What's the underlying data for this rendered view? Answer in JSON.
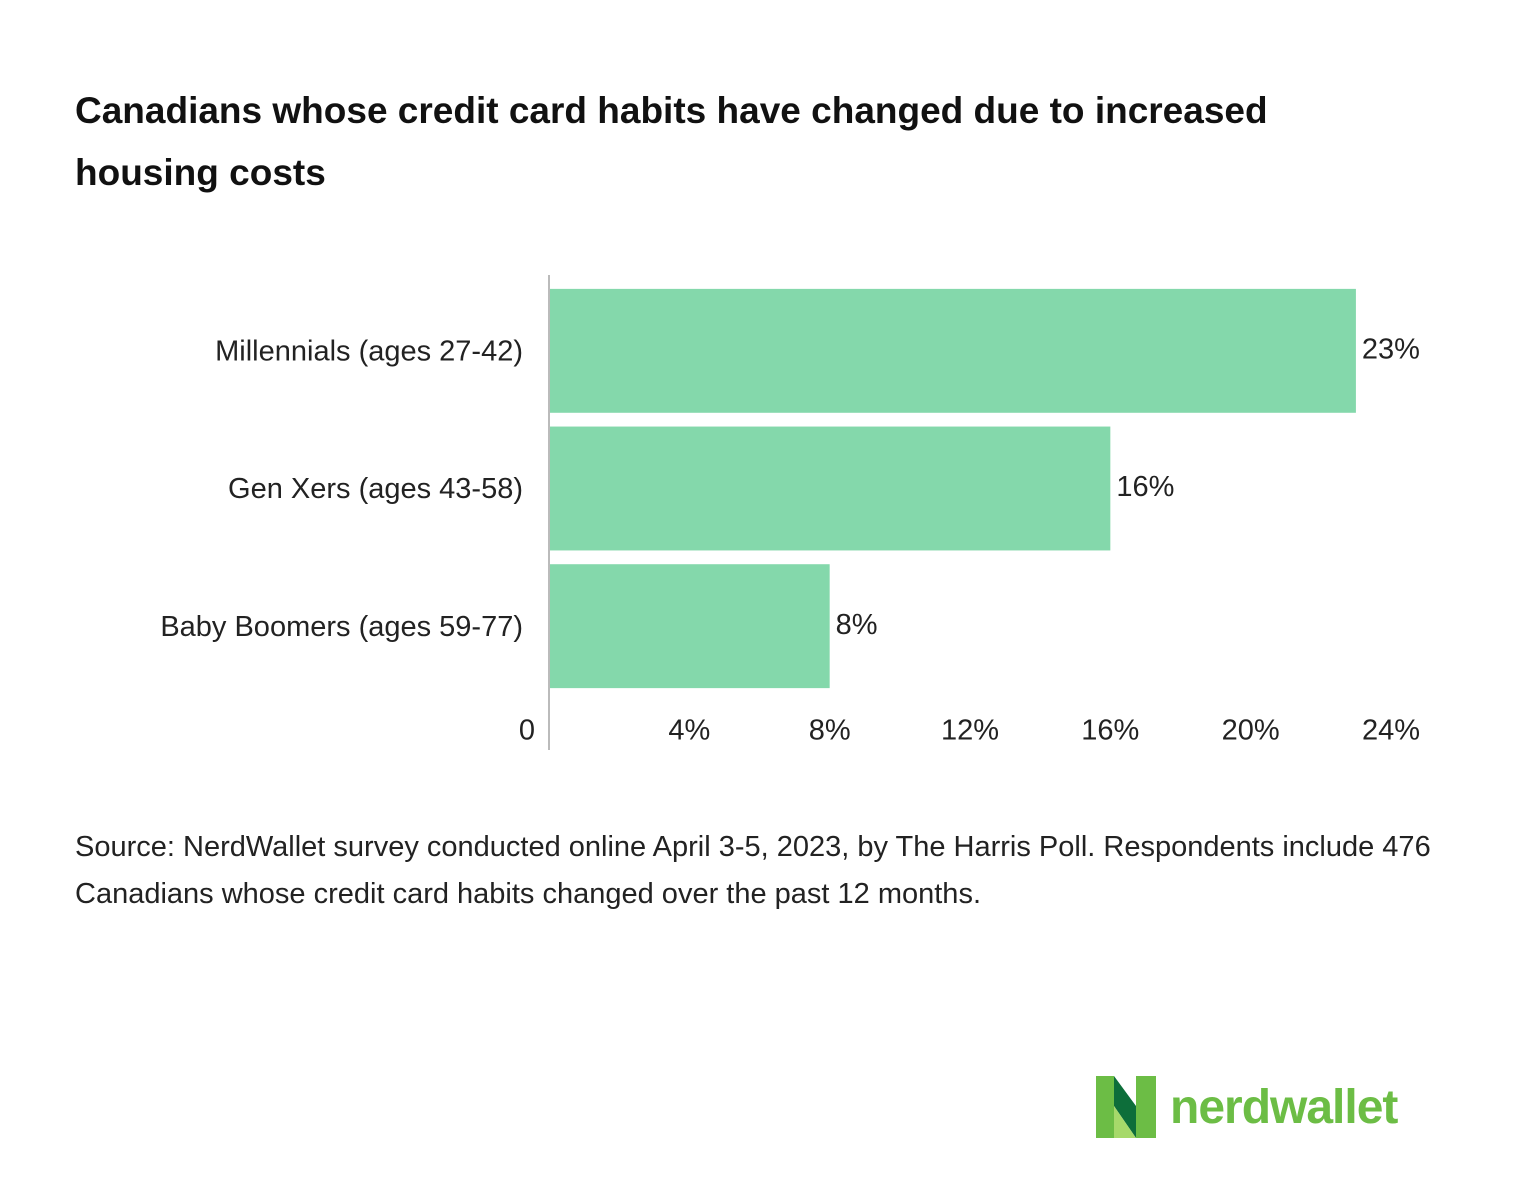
{
  "chart_data": {
    "type": "bar",
    "orientation": "horizontal",
    "title": "Canadians whose credit card habits have changed due to increased housing costs",
    "categories": [
      "Millennials (ages 27-42)",
      "Gen Xers (ages 43-58)",
      "Baby Boomers (ages 59-77)"
    ],
    "values": [
      23,
      16,
      8
    ],
    "value_labels": [
      "23%",
      "16%",
      "8%"
    ],
    "color": "#84d8ab",
    "xlim": [
      0,
      24
    ],
    "xticks": [
      0,
      {
        "value": 4,
        "label": "4%"
      },
      {
        "value": 8,
        "label": "8%"
      },
      {
        "value": 12,
        "label": "12%"
      },
      {
        "value": 16,
        "label": "16%"
      },
      {
        "value": 20,
        "label": "20%"
      },
      {
        "value": 24,
        "label": "24%"
      }
    ],
    "grid": false,
    "source": "Source: NerdWallet survey conducted online April 3-5, 2023, by The Harris Poll. Respondents include 476 Canadians whose credit card habits changed over the past 12 months."
  },
  "brand": "nerdwallet"
}
